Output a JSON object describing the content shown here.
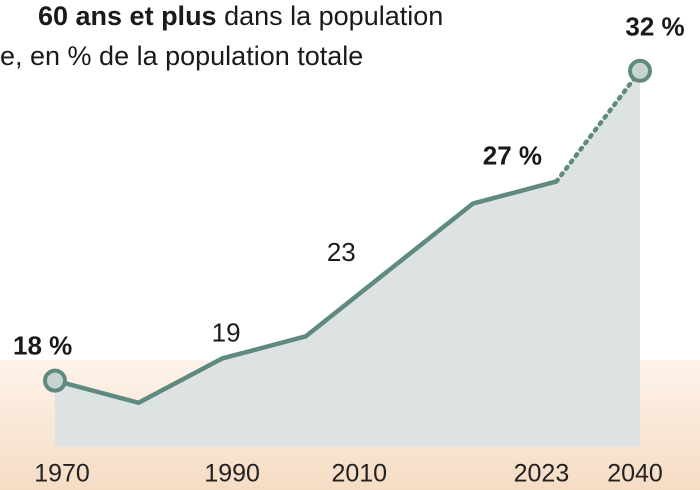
{
  "chart_data": {
    "type": "area",
    "title_bold": "60 ans et plus",
    "title": " dans la population",
    "subtitle": "e, en % de la population totale",
    "categories": [
      "1970",
      null,
      "1990",
      null,
      "2010",
      null,
      "2023",
      "2040"
    ],
    "values": [
      18,
      17,
      19,
      20,
      23,
      26,
      27,
      32
    ],
    "value_labels": [
      "18 %",
      null,
      "19",
      null,
      "23",
      null,
      "27 %",
      "32 %"
    ],
    "color": "#5f8a80",
    "fill": "#dde3e3",
    "ylim": [
      15,
      35.2
    ],
    "dashed_last_segment": true
  }
}
